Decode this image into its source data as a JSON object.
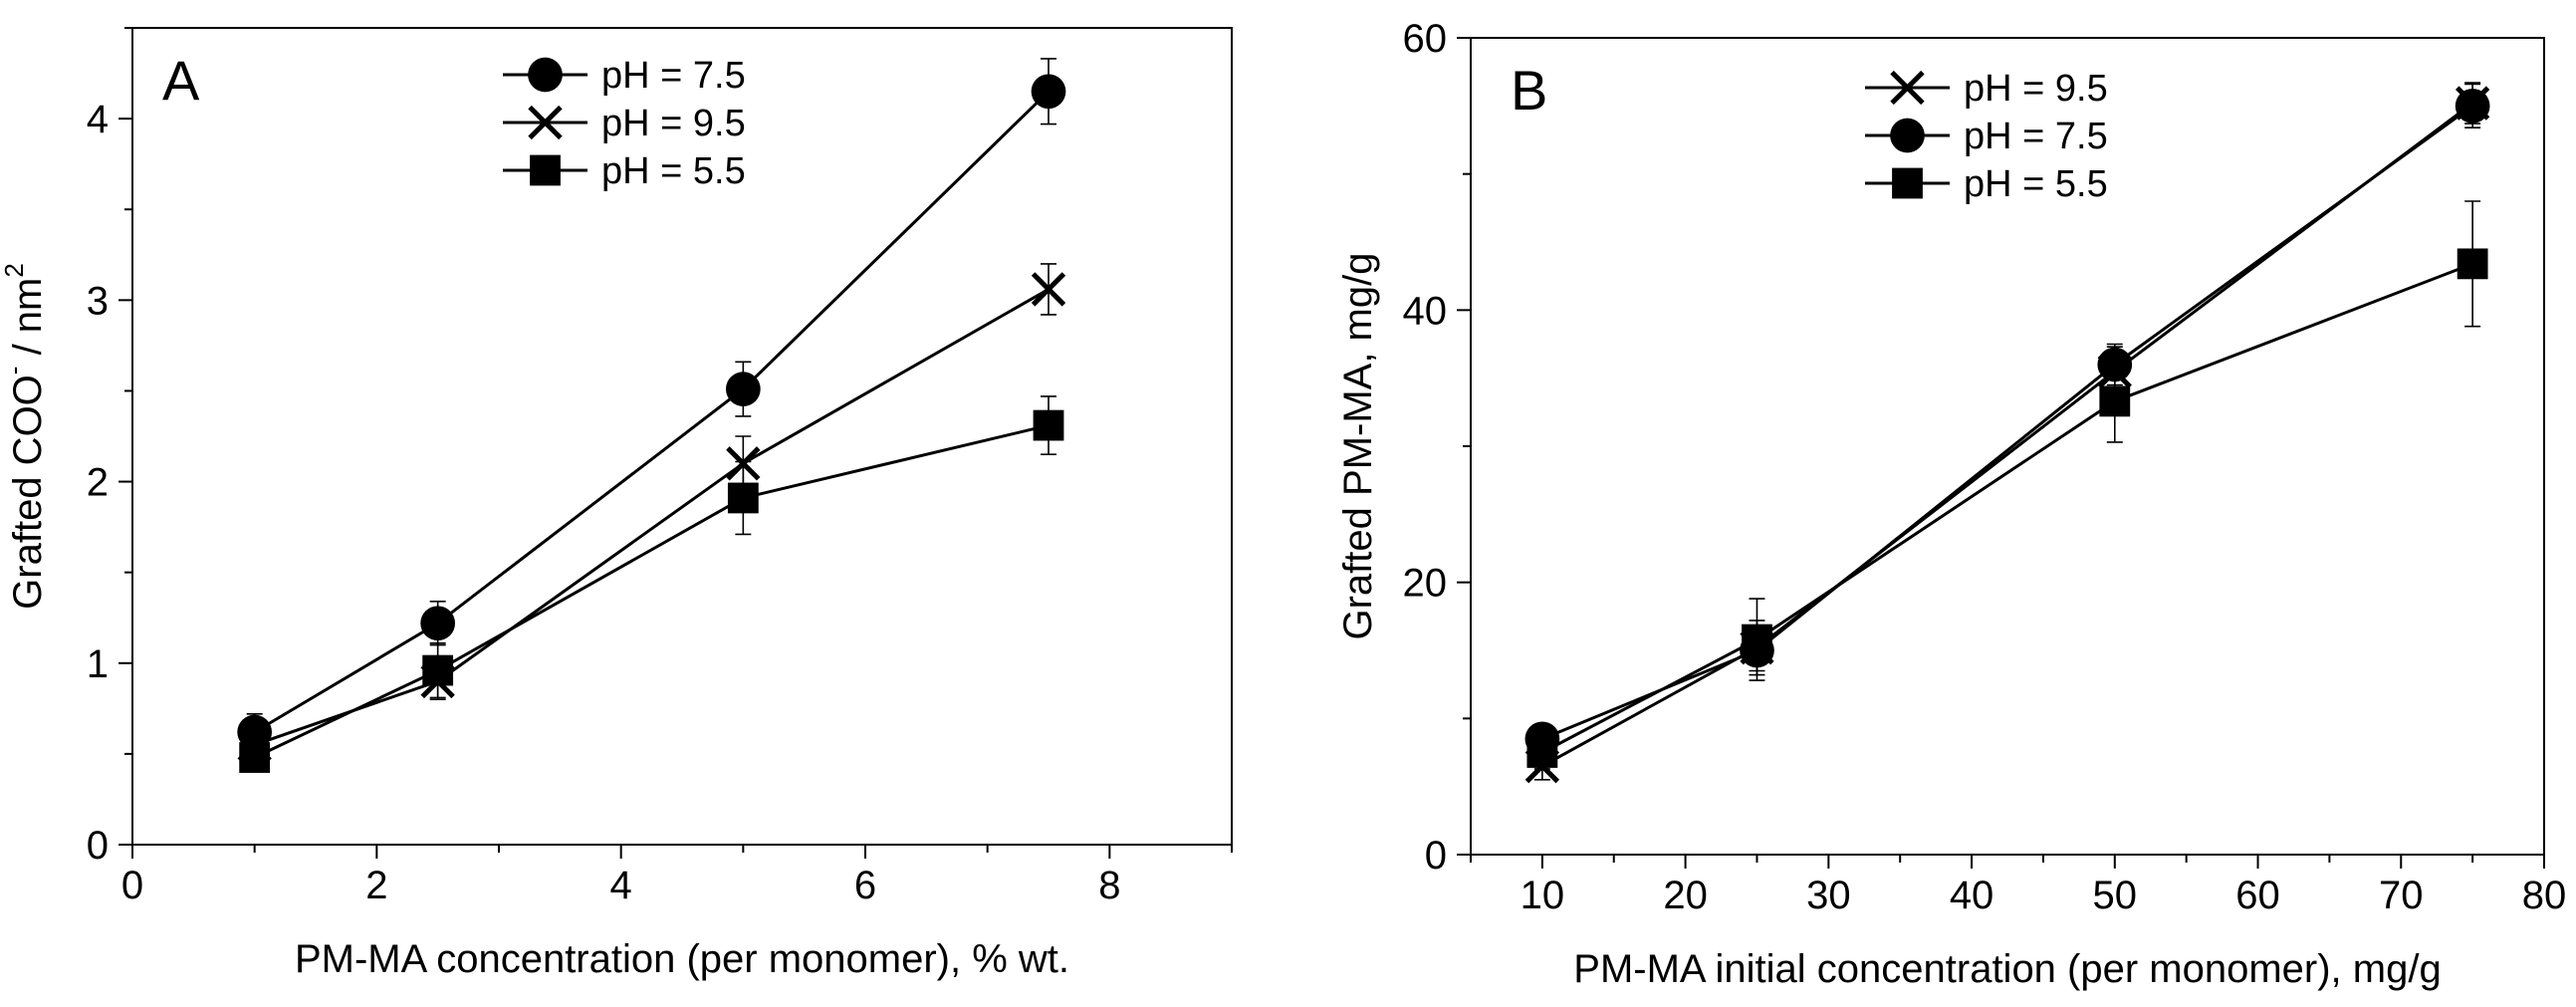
{
  "chart_data": [
    {
      "type": "line",
      "panel_label": "A",
      "xlabel": "PM-MA concentration (per monomer), % wt.",
      "ylabel": "Grafted COO",
      "ylabel_sup1": "-",
      "ylabel_mid": " / nm",
      "ylabel_sup2": "2",
      "xlim": [
        0,
        9
      ],
      "ylim": [
        0,
        4.5
      ],
      "xticks": [
        0,
        2,
        4,
        6,
        8
      ],
      "yticks": [
        0,
        1,
        2,
        3,
        4
      ],
      "legend_position": "top-center",
      "series": [
        {
          "name": "pH = 7.5",
          "marker": "circle",
          "x": [
            1,
            2.5,
            5,
            7.5
          ],
          "y": [
            0.62,
            1.22,
            2.51,
            4.15
          ],
          "err": [
            0.1,
            0.12,
            0.15,
            0.18
          ]
        },
        {
          "name": "pH = 9.5",
          "marker": "x",
          "x": [
            1,
            2.5,
            5,
            7.5
          ],
          "y": [
            0.55,
            0.9,
            2.1,
            3.06
          ],
          "err": [
            0.08,
            0.1,
            0.15,
            0.14
          ]
        },
        {
          "name": "pH = 5.5",
          "marker": "square",
          "x": [
            1,
            2.5,
            5,
            7.5
          ],
          "y": [
            0.48,
            0.96,
            1.91,
            2.31
          ],
          "err": [
            0.06,
            0.15,
            0.2,
            0.16
          ]
        }
      ]
    },
    {
      "type": "line",
      "panel_label": "B",
      "xlabel": "PM-MA initial concentration (per monomer), mg/g",
      "ylabel": "Grafted PM-MA, mg/g",
      "xlim": [
        5,
        80
      ],
      "ylim": [
        0,
        60
      ],
      "xticks": [
        10,
        20,
        30,
        40,
        50,
        60,
        70,
        80
      ],
      "yticks": [
        0,
        20,
        40,
        60
      ],
      "legend_position": "top-center",
      "series": [
        {
          "name": "pH = 9.5",
          "marker": "x",
          "x": [
            10,
            25,
            50,
            75
          ],
          "y": [
            6.5,
            15.2,
            35.5,
            55.2
          ],
          "err": [
            1.0,
            2.0,
            1.8,
            1.5
          ]
        },
        {
          "name": "pH = 7.5",
          "marker": "circle",
          "x": [
            10,
            25,
            50,
            75
          ],
          "y": [
            8.5,
            15.0,
            36.0,
            55.0
          ],
          "err": [
            1.0,
            1.5,
            1.5,
            1.6
          ]
        },
        {
          "name": "pH = 5.5",
          "marker": "square",
          "x": [
            10,
            25,
            50,
            75
          ],
          "y": [
            7.5,
            15.8,
            33.3,
            43.4
          ],
          "err": [
            1.2,
            3.0,
            3.0,
            4.6
          ]
        }
      ]
    }
  ]
}
